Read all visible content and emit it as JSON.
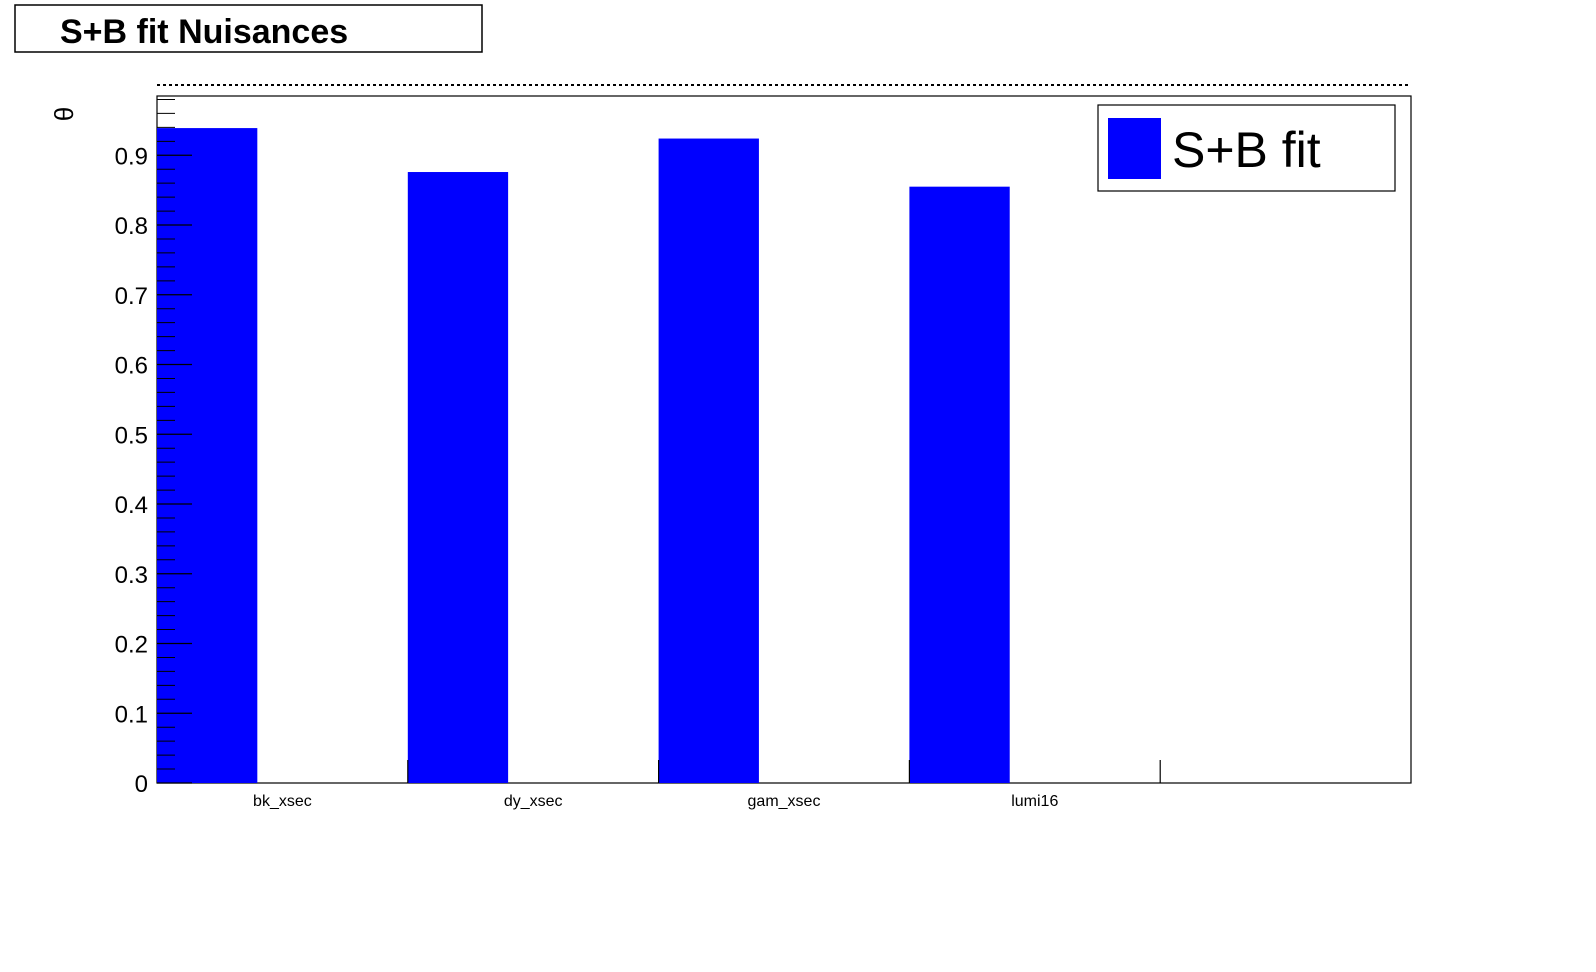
{
  "colors": {
    "bar": "#0000ff",
    "axis": "#000000",
    "background": "#ffffff"
  },
  "chart_data": {
    "type": "bar",
    "title": "S+B fit Nuisances",
    "xlabel": "",
    "ylabel": "θ",
    "categories": [
      "bk_xsec",
      "dy_xsec",
      "gam_xsec",
      "lumi16",
      ""
    ],
    "series": [
      {
        "name": "S+B fit",
        "values": [
          0.939,
          0.876,
          0.924,
          0.855,
          0
        ]
      }
    ],
    "ylim": [
      0,
      0.985
    ],
    "yticks": [
      "0",
      "0.1",
      "0.2",
      "0.3",
      "0.4",
      "0.5",
      "0.6",
      "0.7",
      "0.8",
      "0.9"
    ],
    "legend": {
      "position": "top-right",
      "entries": [
        "S+B fit"
      ]
    },
    "grid": false
  }
}
